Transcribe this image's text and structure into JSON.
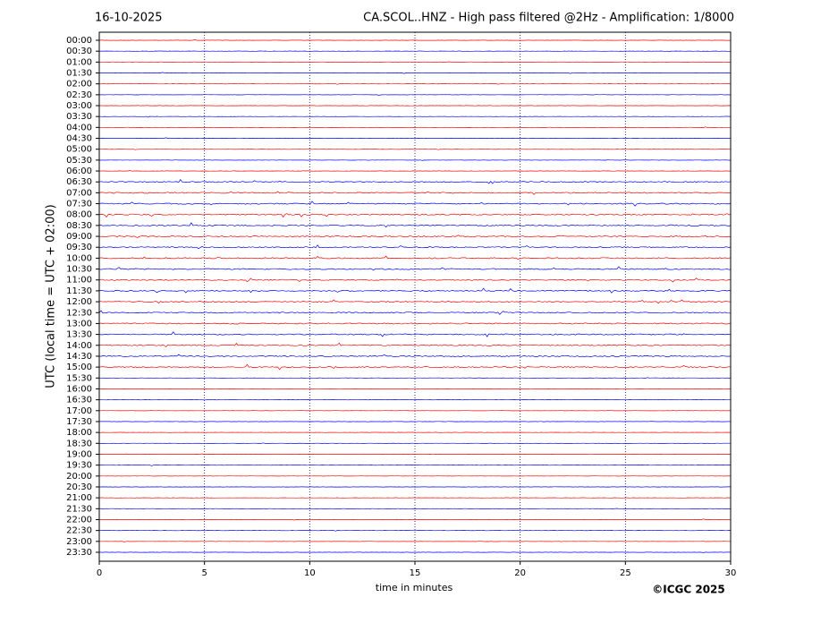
{
  "chart_data": {
    "type": "helicorder",
    "date": "16-10-2025",
    "title": "CA.SCOL..HNZ - High pass filtered @2Hz - Amplification: 1/8000",
    "xlabel": "time in minutes",
    "ylabel": "UTC (local time = UTC + 02:00)",
    "credit": "©ICGC 2025",
    "categories": [
      "00:00",
      "00:30",
      "01:00",
      "01:30",
      "02:00",
      "02:30",
      "03:00",
      "03:30",
      "04:00",
      "04:30",
      "05:00",
      "05:30",
      "06:00",
      "06:30",
      "07:00",
      "07:30",
      "08:00",
      "08:30",
      "09:00",
      "09:30",
      "10:00",
      "10:30",
      "11:00",
      "11:30",
      "12:00",
      "12:30",
      "13:00",
      "13:30",
      "14:00",
      "14:30",
      "15:00",
      "15:30",
      "16:00",
      "16:30",
      "17:00",
      "17:30",
      "18:00",
      "18:30",
      "19:00",
      "19:30",
      "20:00",
      "20:30",
      "21:00",
      "21:30",
      "22:00",
      "22:30",
      "23:00",
      "23:30"
    ],
    "colors": [
      "#ff0000",
      "#0000ff"
    ],
    "xlim": [
      0,
      30
    ],
    "xticks": [
      0,
      5,
      10,
      15,
      20,
      25,
      30
    ],
    "grid": true
  }
}
